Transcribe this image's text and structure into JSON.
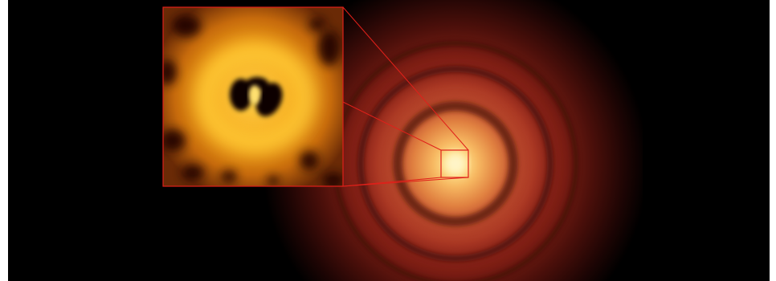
{
  "image": {
    "subject": "protoplanetary-disc",
    "colors": {
      "background": "#000000",
      "frame": "#ffffff",
      "disc_core": "#fff2b0",
      "disc_mid": "#f0a040",
      "disc_outer": "#a02010",
      "inset_glow": "#f2a014",
      "inset_outline": "#e0201a"
    }
  }
}
